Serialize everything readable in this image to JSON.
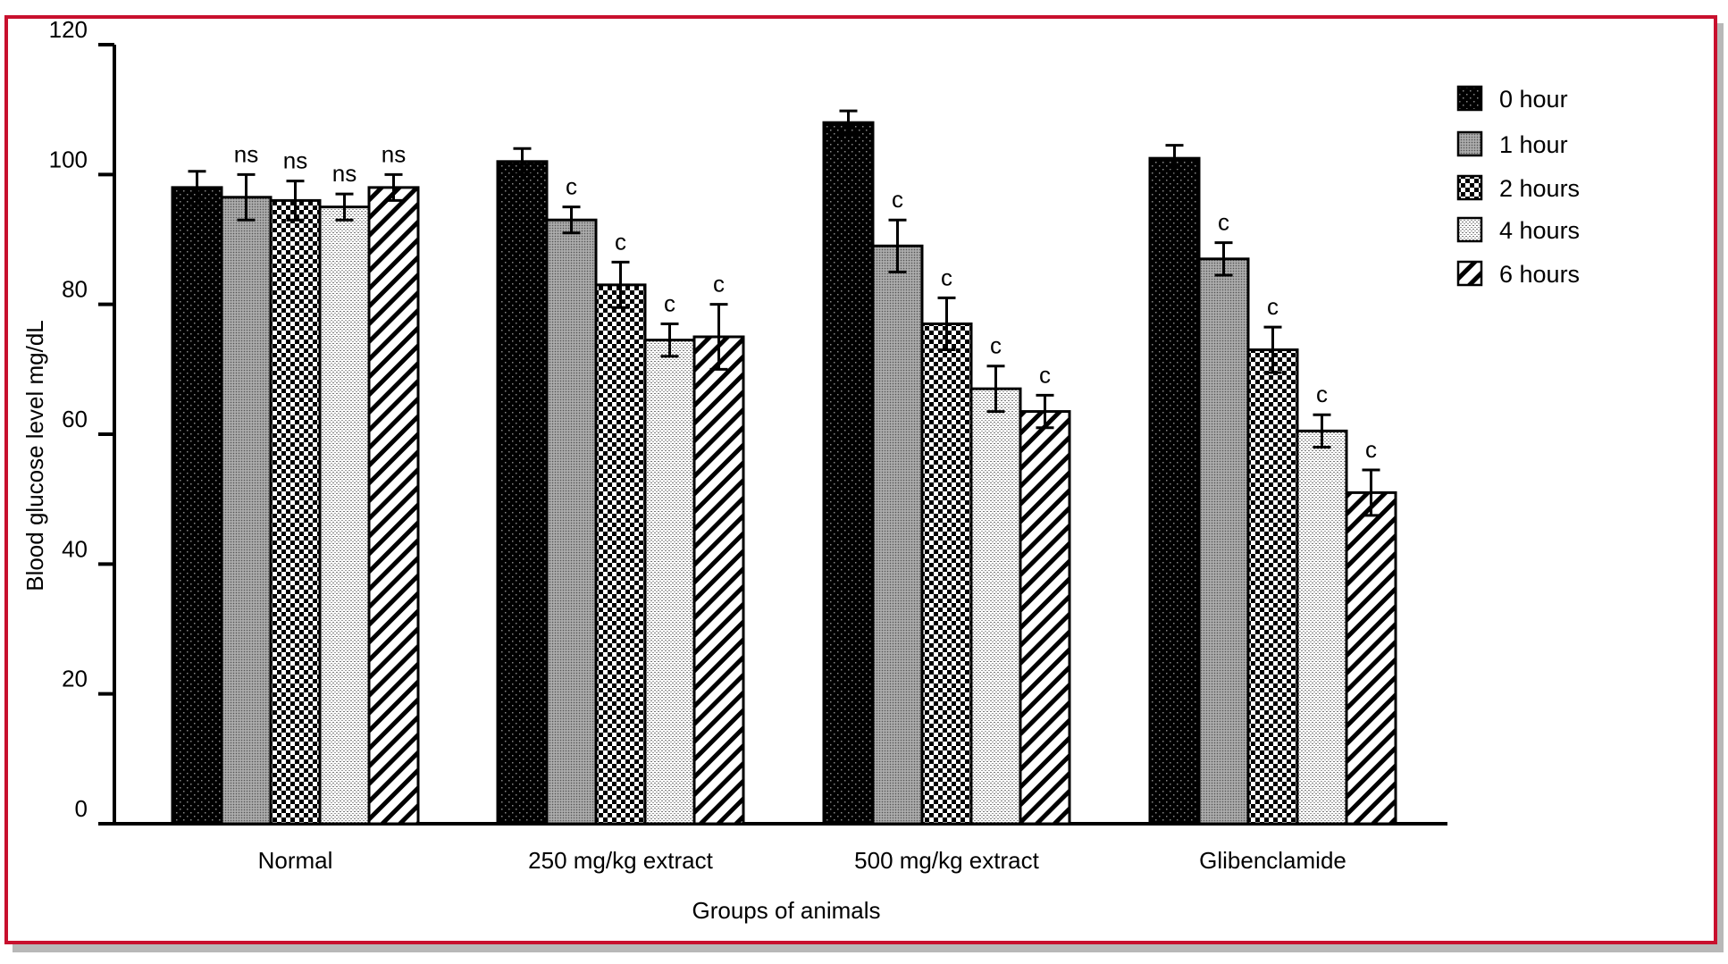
{
  "chart_data": {
    "type": "bar",
    "xlabel": "Groups of animals",
    "ylabel": "Blood glucose level  mg/dL",
    "ylim": [
      0,
      120
    ],
    "yticks": [
      0,
      20,
      40,
      60,
      80,
      100,
      120
    ],
    "categories": [
      "Normal",
      "250 mg/kg extract",
      "500 mg/kg extract",
      "Glibenclamide"
    ],
    "legend_position": "top-right",
    "series": [
      {
        "name": "0 hour",
        "pattern": "dots",
        "values": [
          98,
          102,
          108,
          102.5
        ],
        "errors": [
          2.5,
          2,
          1.8,
          2
        ],
        "labels": [
          "",
          "",
          "",
          ""
        ]
      },
      {
        "name": "1 hour",
        "pattern": "fine-grid",
        "values": [
          96.5,
          93,
          89,
          87
        ],
        "errors": [
          3.5,
          2,
          4,
          2.5
        ],
        "labels": [
          "ns",
          "c",
          "c",
          "c"
        ]
      },
      {
        "name": "2 hours",
        "pattern": "checker",
        "values": [
          96,
          83,
          77,
          73
        ],
        "errors": [
          3,
          3.5,
          4,
          3.5
        ],
        "labels": [
          "ns",
          "c",
          "c",
          "c"
        ]
      },
      {
        "name": "4 hours",
        "pattern": "light-grid",
        "values": [
          95,
          74.5,
          67,
          60.5
        ],
        "errors": [
          2,
          2.5,
          3.5,
          2.5
        ],
        "labels": [
          "ns",
          "c",
          "c",
          "c"
        ]
      },
      {
        "name": "6 hours",
        "pattern": "diagonal",
        "values": [
          98,
          75,
          63.5,
          51
        ],
        "errors": [
          2,
          5,
          2.5,
          3.5
        ],
        "labels": [
          "ns",
          "c",
          "c",
          "c"
        ]
      }
    ]
  }
}
